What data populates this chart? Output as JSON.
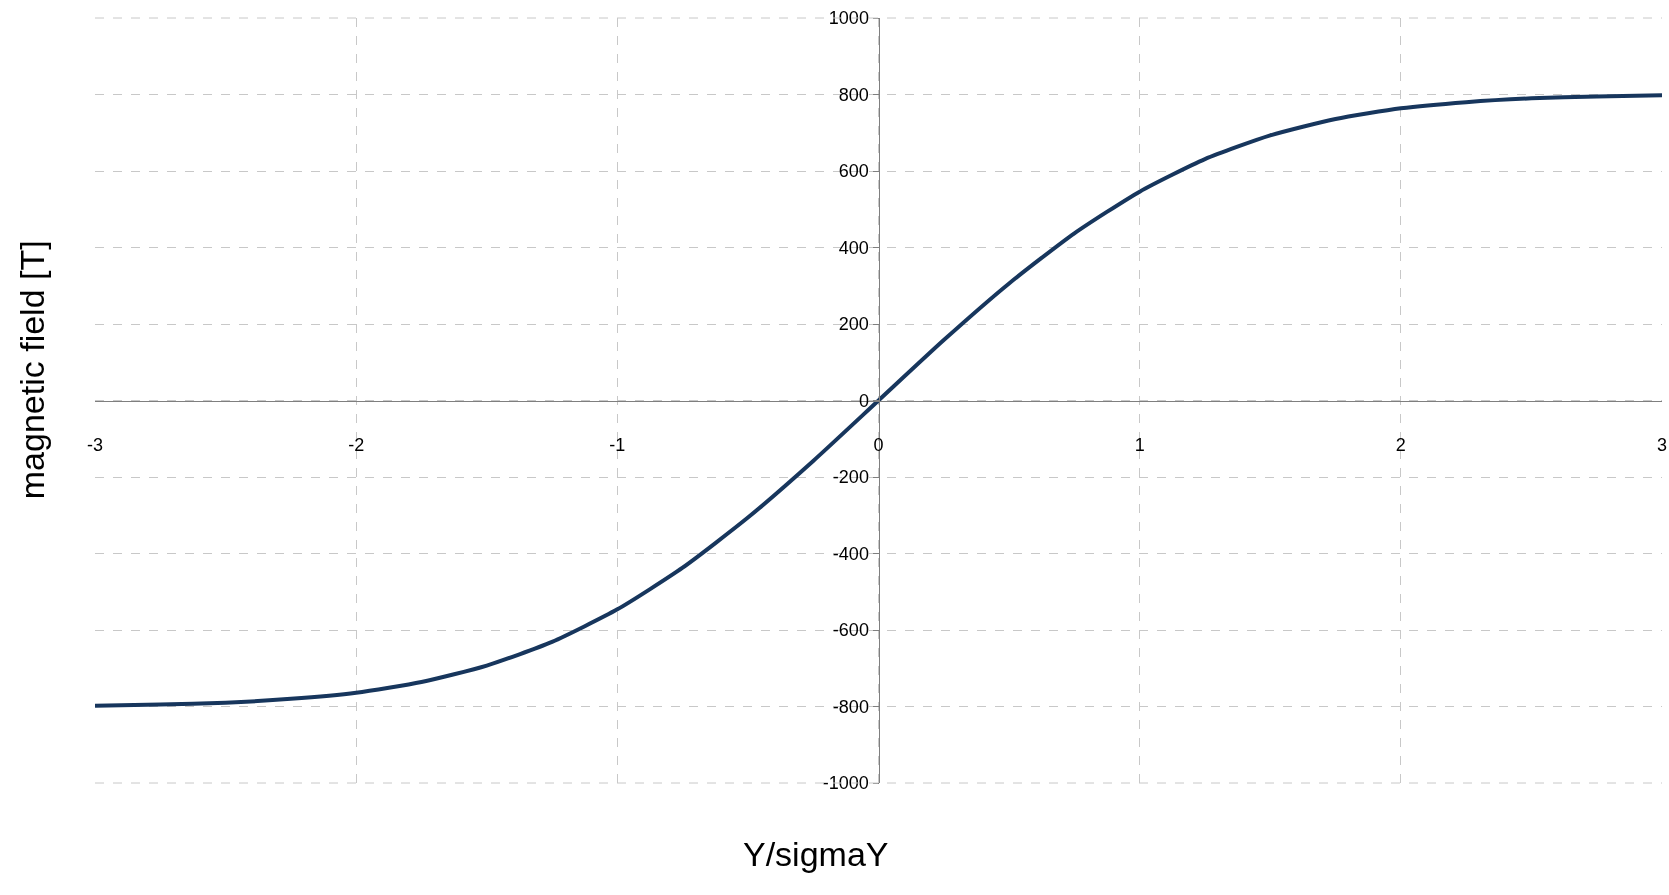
{
  "chart_data": {
    "type": "line",
    "xlabel": "Y/sigmaY",
    "ylabel": "magnetic field [T]",
    "x": [
      -3,
      -2.75,
      -2.5,
      -2.25,
      -2,
      -1.75,
      -1.5,
      -1.25,
      -1,
      -0.75,
      -0.5,
      -0.25,
      0,
      0.25,
      0.5,
      0.75,
      1,
      1.25,
      1.5,
      1.75,
      2,
      2.25,
      2.5,
      2.75,
      3
    ],
    "series": [
      {
        "color": "#17365d",
        "values": [
          -798,
          -795,
          -790,
          -780,
          -764,
          -736,
          -693,
          -631,
          -546,
          -437,
          -306,
          -158,
          0,
          158,
          306,
          437,
          546,
          631,
          693,
          736,
          764,
          780,
          790,
          795,
          798
        ]
      }
    ],
    "xlim": [
      -3,
      3
    ],
    "xticks": [
      -3,
      -2,
      -1,
      0,
      1,
      2,
      3
    ],
    "ylim": [
      -1000,
      1000
    ],
    "yticks": [
      -1000,
      -800,
      -600,
      -400,
      -200,
      0,
      200,
      400,
      600,
      800,
      1000
    ],
    "grid": true,
    "marker": "none",
    "line_style": "solid"
  }
}
